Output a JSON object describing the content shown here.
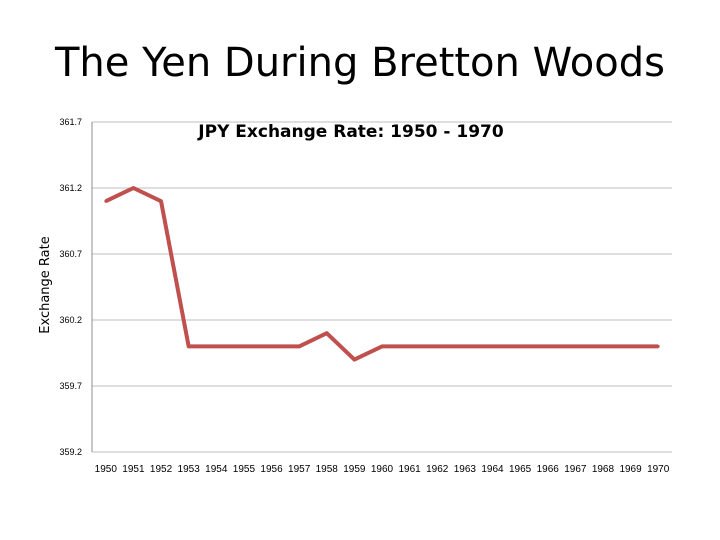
{
  "page": {
    "title": "The Yen During Bretton Woods"
  },
  "chart_data": {
    "type": "line",
    "title": "JPY Exchange Rate: 1950 - 1970",
    "xlabel": "",
    "ylabel": "Exchange Rate",
    "ylim": [
      359.2,
      361.7
    ],
    "yticks": [
      "361.7",
      "361.2",
      "360.7",
      "360.2",
      "359.7",
      "359.2"
    ],
    "grid": true,
    "legend": "none",
    "line_color": "#C0504D",
    "categories": [
      "1950",
      "1951",
      "1952",
      "1953",
      "1954",
      "1955",
      "1956",
      "1957",
      "1958",
      "1959",
      "1960",
      "1961",
      "1962",
      "1963",
      "1964",
      "1965",
      "1966",
      "1967",
      "1968",
      "1969",
      "1970"
    ],
    "series": [
      {
        "values": [
          361.1,
          361.2,
          361.1,
          360.0,
          360.0,
          360.0,
          360.0,
          360.0,
          360.1,
          359.9,
          360.0,
          360.0,
          360.0,
          360.0,
          360.0,
          360.0,
          360.0,
          360.0,
          360.0,
          360.0,
          360.0
        ]
      }
    ]
  }
}
